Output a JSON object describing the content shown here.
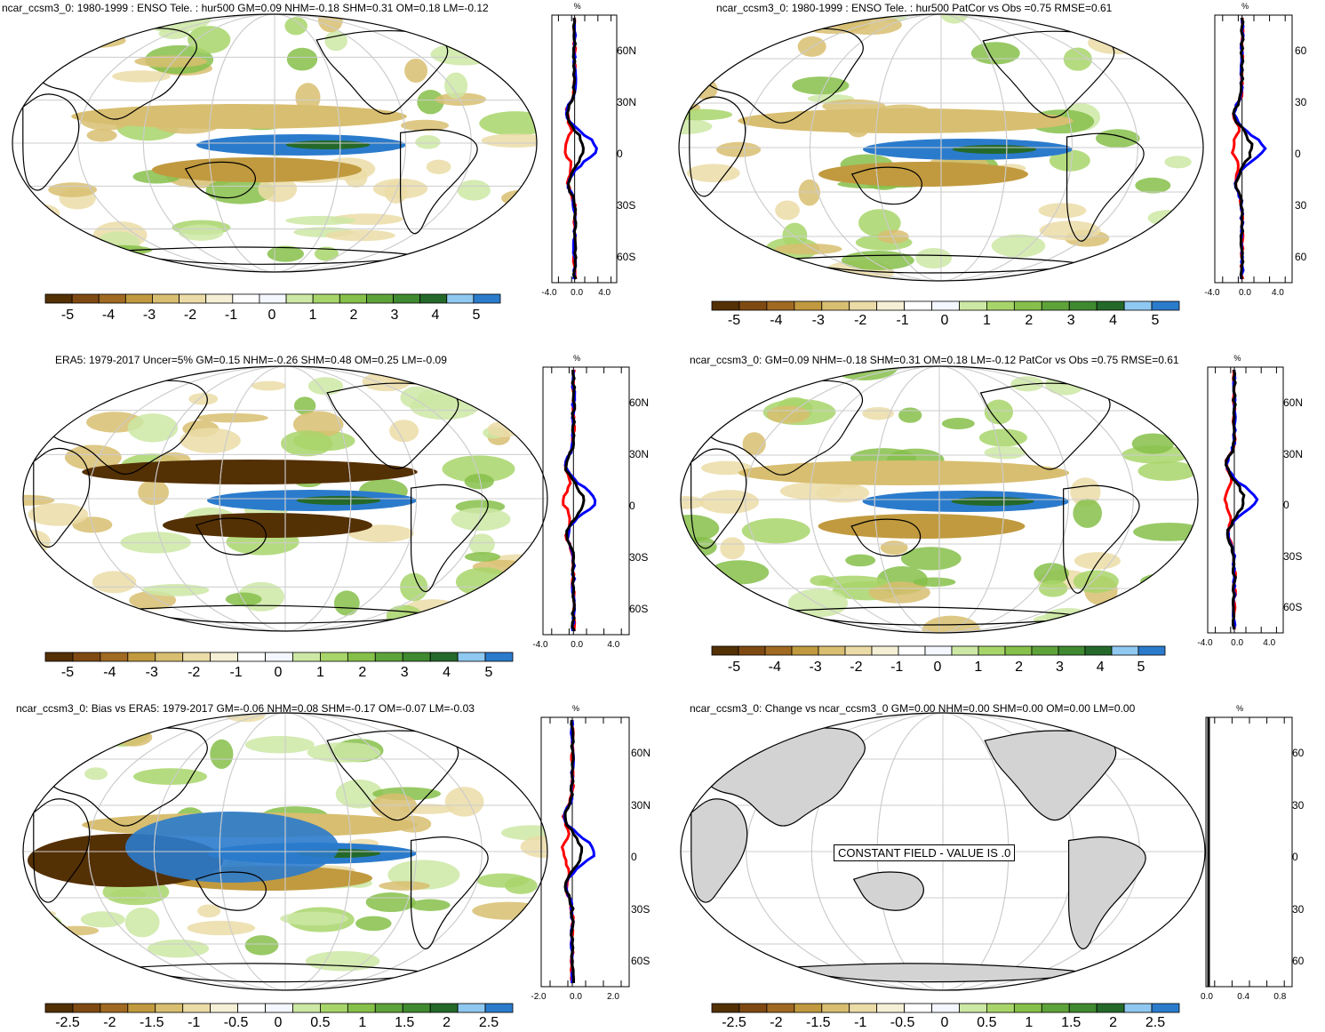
{
  "panels": [
    {
      "id": "p1",
      "title": "ncar_ccsm3_0: 1980-1999 : ENSO Tele. : hur500 GM=0.09 NHM=-0.18 SHM=0.31 OM=0.18 LM=-0.12",
      "zonal_unit": "%",
      "lat_labels": [
        "60N",
        "30N",
        "0",
        "30S",
        "60S"
      ],
      "x_ticks": [
        "-4.0",
        "0.0",
        "4.0"
      ],
      "cbar_labels": [
        "-5",
        "-4",
        "-3",
        "-2",
        "-1",
        "0",
        "1",
        "2",
        "3",
        "4",
        "5"
      ]
    },
    {
      "id": "p2",
      "title": "ncar_ccsm3_0: 1980-1999 : ENSO Tele. : hur500 PatCor vs Obs =0.75 RMSE=0.61",
      "zonal_unit": "%",
      "lat_labels": [
        "60",
        "30",
        "0",
        "30",
        "60"
      ],
      "x_ticks": [
        "-4.0",
        "0.0",
        "4.0"
      ],
      "cbar_labels": [
        "-5",
        "-4",
        "-3",
        "-2",
        "-1",
        "0",
        "1",
        "2",
        "3",
        "4",
        "5"
      ]
    },
    {
      "id": "p3",
      "title": "ERA5: 1979-2017 Uncer=5% GM=0.15 NHM=-0.26 SHM=0.48 OM=0.25 LM=-0.09",
      "zonal_unit": "%",
      "lat_labels": [
        "60N",
        "30N",
        "0",
        "30S",
        "60S"
      ],
      "x_ticks": [
        "-4.0",
        "0.0",
        "4.0"
      ],
      "cbar_labels": [
        "-5",
        "-4",
        "-3",
        "-2",
        "-1",
        "0",
        "1",
        "2",
        "3",
        "4",
        "5"
      ]
    },
    {
      "id": "p4",
      "title": "ncar_ccsm3_0: GM=0.09 NHM=-0.18 SHM=0.31 OM=0.18 LM=-0.12 PatCor vs Obs =0.75 RMSE=0.61",
      "zonal_unit": "%",
      "lat_labels": [
        "60N",
        "30N",
        "0",
        "30S",
        "60S"
      ],
      "x_ticks": [
        "-4.0",
        "0.0",
        "4.0"
      ],
      "cbar_labels": [
        "-5",
        "-4",
        "-3",
        "-2",
        "-1",
        "0",
        "1",
        "2",
        "3",
        "4",
        "5"
      ]
    },
    {
      "id": "p5",
      "title": "ncar_ccsm3_0: Bias vs ERA5: 1979-2017 GM=-0.06 NHM=0.08 SHM=-0.17 OM=-0.07 LM=-0.03",
      "zonal_unit": "%",
      "lat_labels": [
        "60N",
        "30N",
        "0",
        "30S",
        "60S"
      ],
      "x_ticks": [
        "-2.0",
        "0.0",
        "2.0"
      ],
      "cbar_labels": [
        "-2.5",
        "-2",
        "-1.5",
        "-1",
        "-0.5",
        "0",
        "0.5",
        "1",
        "1.5",
        "2",
        "2.5"
      ]
    },
    {
      "id": "p6",
      "title": "ncar_ccsm3_0: Change vs ncar_ccsm3_0 GM=0.00 NHM=0.00 SHM=0.00 OM=0.00 LM=0.00",
      "zonal_unit": "%",
      "lat_labels": [
        "60",
        "30",
        "0",
        "30",
        "60"
      ],
      "x_ticks": [
        "0.0",
        "0.4",
        "0.8"
      ],
      "cbar_labels": [
        "-2.5",
        "-2",
        "-1.5",
        "-1",
        "-0.5",
        "0",
        "0.5",
        "1",
        "1.5",
        "2",
        "2.5"
      ],
      "constant_field_text": "CONSTANT FIELD - VALUE IS .0"
    }
  ],
  "colors": {
    "palette": [
      "#543005",
      "#7f4a12",
      "#a06a22",
      "#c19a3f",
      "#d8be70",
      "#ebdca7",
      "#f5efd6",
      "#ffffff",
      "#f4f7ff",
      "#cde8a4",
      "#a8d56a",
      "#86c04a",
      "#5ea33a",
      "#3f8a30",
      "#24692a",
      "#8fc8f0",
      "#2b7bcc"
    ],
    "land_gray": "#d3d3d3",
    "series_red": "#ff0000",
    "series_blue": "#0000ff",
    "series_black": "#000000"
  }
}
